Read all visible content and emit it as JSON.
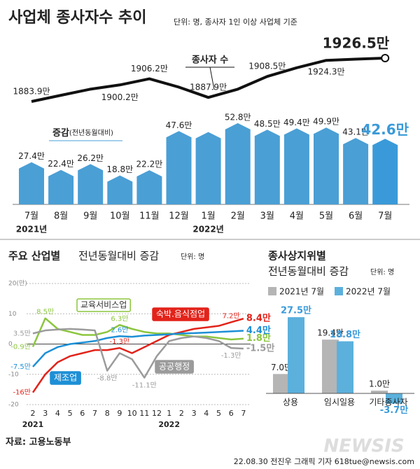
{
  "header": {
    "title": "사업체 종사자수 추이",
    "unit_note": "단위: 명, 종사자 1인 이상 사업체 기준"
  },
  "chart_data": [
    {
      "type": "combo",
      "categories": [
        "7월",
        "8월",
        "9월",
        "10월",
        "11월",
        "12월",
        "1월",
        "2월",
        "3월",
        "4월",
        "5월",
        "6월",
        "7월"
      ],
      "x_groups": [
        "2021년",
        "2022년"
      ],
      "line": {
        "name": "종사자 수",
        "color": "#111111",
        "values": [
          1883.9,
          1890,
          1896,
          1900.2,
          1906.2,
          1898,
          1887.9,
          1896,
          1908.5,
          1917,
          1924.3,
          1925.5,
          1926.5
        ],
        "value_labels": [
          "1883.9만",
          null,
          null,
          "1900.2만",
          "1906.2만",
          null,
          "1887.9만",
          null,
          "1908.5만",
          null,
          "1924.3만",
          null,
          "1926.5만"
        ]
      },
      "bars": {
        "name": "증감",
        "name_note": "(전년동월대비)",
        "color": "#4a9fd5",
        "highlight_color": "#3a9ad9",
        "values": [
          27.4,
          22.4,
          26.2,
          18.8,
          22.2,
          47.6,
          47,
          52.8,
          48.5,
          49.4,
          49.9,
          43.1,
          42.6
        ],
        "value_labels": [
          "27.4만",
          "22.4만",
          "26.2만",
          "18.8만",
          "22.2만",
          "47.6만",
          null,
          "52.8만",
          "48.5만",
          "49.4만",
          "49.9만",
          "43.1만",
          "42.6만"
        ]
      }
    },
    {
      "type": "line",
      "title": "주요 산업별",
      "subtitle": "전년동월대비 증감",
      "unit": "단위: 명",
      "categories": [
        "2",
        "3",
        "4",
        "5",
        "6",
        "7",
        "8",
        "9",
        "10",
        "11",
        "12",
        "1",
        "2",
        "3",
        "4",
        "5",
        "6",
        "7"
      ],
      "x_groups": [
        "2021",
        "2022"
      ],
      "ylim": [
        -20,
        20
      ],
      "yticks": [
        {
          "value": 20,
          "label": "20(만)"
        },
        10,
        0,
        -10,
        -20
      ],
      "grid": true,
      "series": [
        {
          "name": "교육서비스업",
          "color": "#8cc63e",
          "values": [
            -0.9,
            8.5,
            5,
            4,
            3,
            3,
            4,
            6.3,
            5,
            4,
            3.5,
            3.5,
            3,
            2.5,
            2.5,
            2,
            1.5,
            1.8
          ],
          "value_labels": [
            "-0.9만",
            "8.5만",
            null,
            null,
            null,
            null,
            null,
            "6.3만",
            null,
            null,
            null,
            null,
            null,
            null,
            null,
            null,
            null,
            "1.8만"
          ]
        },
        {
          "name": "숙박.음식점업",
          "color": "#e2231a",
          "values": [
            -16,
            -10,
            -6,
            -4,
            -3,
            -2,
            -2,
            -1.3,
            -3,
            -1,
            1,
            3,
            4,
            5,
            5.5,
            6,
            7.2,
            8.4
          ],
          "value_labels": [
            "-16만",
            null,
            null,
            null,
            null,
            null,
            null,
            "-1.3만",
            null,
            null,
            null,
            null,
            null,
            null,
            null,
            null,
            "7.2만",
            "8.4만"
          ]
        },
        {
          "name": "제조업",
          "color": "#1d8fd6",
          "values": [
            -7.5,
            -3,
            -1,
            0,
            0.5,
            1,
            2,
            2.6,
            2.4,
            2.8,
            3,
            3.2,
            3.5,
            3.6,
            3.8,
            4,
            4.2,
            4.4
          ],
          "value_labels": [
            "-7.5만",
            null,
            null,
            null,
            null,
            null,
            null,
            "2.6만",
            null,
            null,
            null,
            null,
            null,
            null,
            null,
            null,
            null,
            "4.4만"
          ]
        },
        {
          "name": "공공행정",
          "color": "#9b9b9b",
          "values": [
            3.5,
            4.5,
            4.8,
            5,
            4.8,
            4.5,
            -8.8,
            -3,
            -5,
            -11.1,
            -4,
            1,
            2,
            2.5,
            2,
            1,
            -1.3,
            -1.5
          ],
          "value_labels": [
            "3.5만",
            null,
            null,
            null,
            null,
            null,
            "-8.8만",
            null,
            null,
            "-11.1만",
            null,
            null,
            null,
            null,
            null,
            null,
            "-1.3만",
            "-1.5만"
          ]
        }
      ]
    },
    {
      "type": "bar",
      "title": "종사상지위별",
      "subtitle": "전년동월대비 증감",
      "unit": "단위: 명",
      "categories": [
        "상용",
        "임시일용",
        "기타종사자"
      ],
      "series": [
        {
          "name": "2021년 7월",
          "color": "#b5b5b5",
          "values": [
            7.0,
            19.4,
            1.0
          ],
          "value_labels": [
            "7.0만",
            "19.4만",
            "1.0만"
          ]
        },
        {
          "name": "2022년 7월",
          "color": "#5bb0dc",
          "values": [
            27.5,
            18.8,
            -3.7
          ],
          "value_labels": [
            "27.5만",
            "18.8만",
            "-3.7만"
          ]
        }
      ]
    }
  ],
  "footer": {
    "source": "자료: 고용노동부",
    "credit": "22.08.30 전진우 그래픽 기자 618tue@newsis.com",
    "watermark": "NEWSIS"
  }
}
